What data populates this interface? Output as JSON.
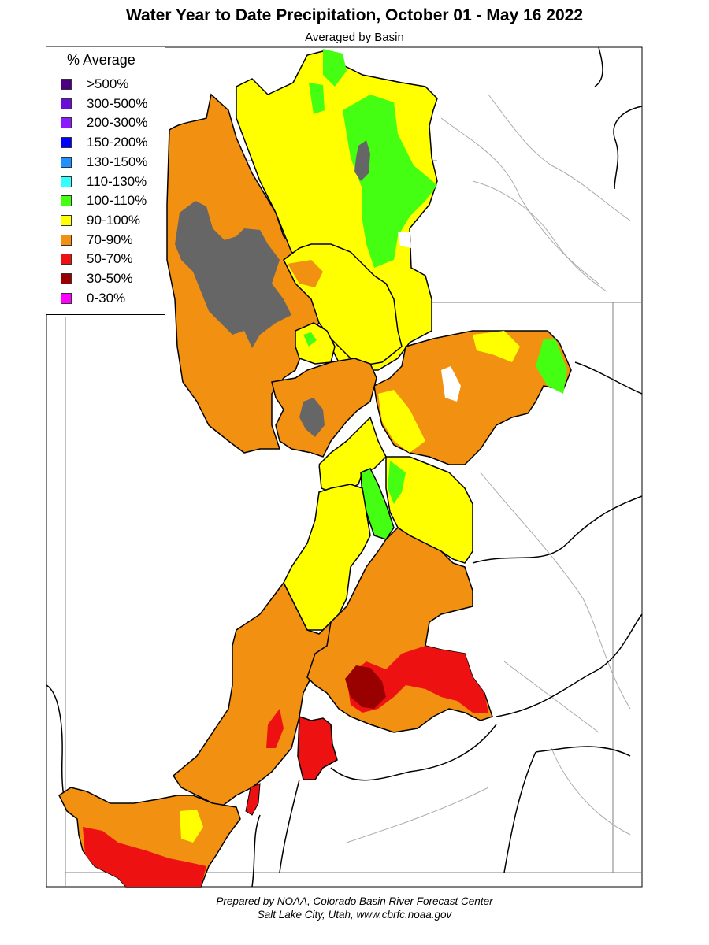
{
  "header": {
    "title": "Water Year to Date Precipitation, October 01  - May 16 2022",
    "subtitle": "Averaged by Basin"
  },
  "legend": {
    "title": "% Average",
    "items": [
      {
        "label": ">500%",
        "color": "#4b0082"
      },
      {
        "label": "300-500%",
        "color": "#6a0dd8"
      },
      {
        "label": "200-300%",
        "color": "#8c1cff"
      },
      {
        "label": "150-200%",
        "color": "#0000ff"
      },
      {
        "label": "130-150%",
        "color": "#1e90ff"
      },
      {
        "label": "110-130%",
        "color": "#33ffff"
      },
      {
        "label": "100-110%",
        "color": "#44ff11"
      },
      {
        "label": "90-100%",
        "color": "#ffff00"
      },
      {
        "label": "70-90%",
        "color": "#f29011"
      },
      {
        "label": "50-70%",
        "color": "#ee1111"
      },
      {
        "label": "30-50%",
        "color": "#990000"
      },
      {
        "label": "0-30%",
        "color": "#ff00ff"
      }
    ]
  },
  "map_colors": {
    "lake": "#666666",
    "boundary": "#000000",
    "state_line": "#808080",
    "river": "#aaaaaa"
  },
  "footer": {
    "line1": "Prepared by NOAA, Colorado Basin River Forecast Center",
    "line2": "Salt Lake City, Utah, www.cbrfc.noaa.gov"
  }
}
